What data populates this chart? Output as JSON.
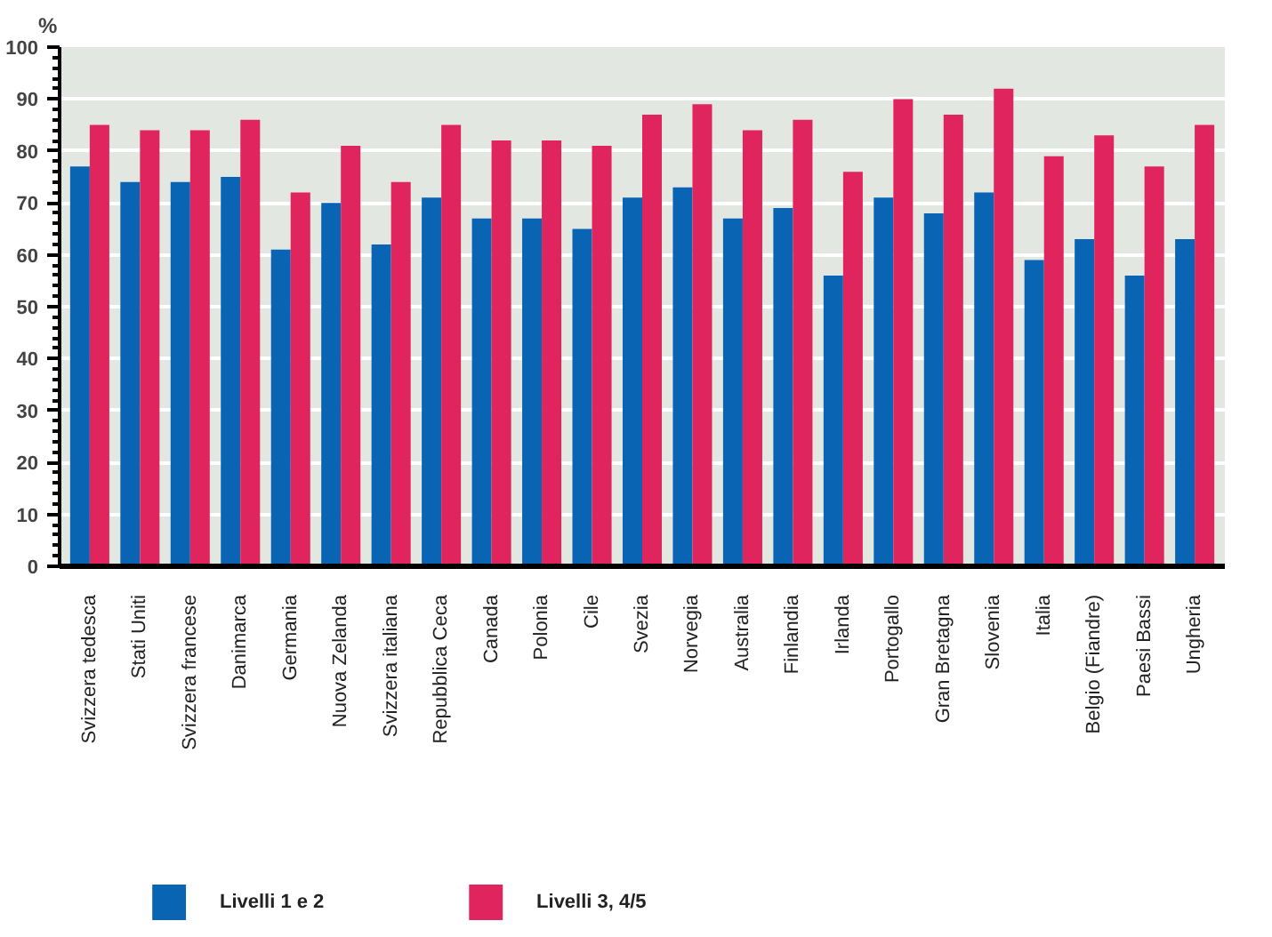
{
  "chart_data": {
    "type": "bar",
    "ylabel": "%",
    "categories": [
      "Svizzera tedesca",
      "Stati Uniti",
      "Svizzera francese",
      "Danimarca",
      "Germania",
      "Nuova Zelanda",
      "Svizzera italiana",
      "Repubblica Ceca",
      "Canada",
      "Polonia",
      "Cile",
      "Svezia",
      "Norvegia",
      "Australia",
      "Finlandia",
      "Irlanda",
      "Portogallo",
      "Gran Bretagna",
      "Slovenia",
      "Italia",
      "Belgio (Fiandre)",
      "Paesi Bassi",
      "Ungheria"
    ],
    "series": [
      {
        "name": "Livelli 1 e 2",
        "color": "#0a64b4",
        "values": [
          77,
          74,
          74,
          75,
          61,
          70,
          62,
          71,
          67,
          67,
          65,
          71,
          73,
          67,
          69,
          56,
          71,
          68,
          72,
          59,
          63,
          56,
          63
        ]
      },
      {
        "name": "Livelli 3, 4/5",
        "color": "#e0245e",
        "values": [
          85,
          84,
          84,
          86,
          72,
          81,
          74,
          85,
          82,
          82,
          81,
          87,
          89,
          84,
          86,
          76,
          90,
          87,
          92,
          79,
          83,
          77,
          85
        ]
      }
    ],
    "ylim": [
      0,
      100
    ],
    "yticks": [
      0,
      10,
      20,
      30,
      40,
      50,
      60,
      70,
      80,
      90,
      100
    ],
    "grid": "y",
    "legend": "bottom"
  }
}
